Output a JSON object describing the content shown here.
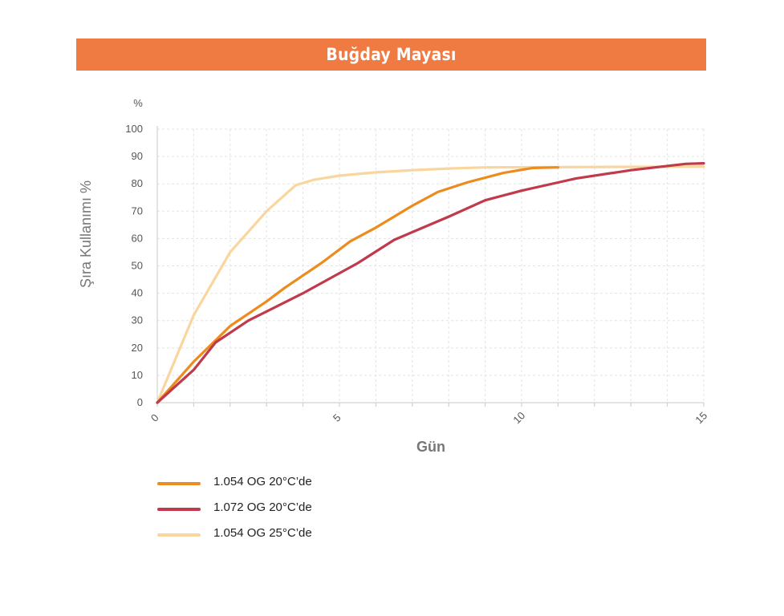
{
  "banner": {
    "title": "Buğday Mayası",
    "color": "#ef7b42"
  },
  "chart_data": {
    "type": "line",
    "title": "Buğday Mayası",
    "xlabel": "Gün",
    "ylabel": "Şıra Kullanımı %",
    "y_unit": "%",
    "xlim": [
      0,
      15
    ],
    "ylim": [
      0,
      100
    ],
    "x_ticks": [
      0,
      5,
      10,
      15
    ],
    "y_ticks": [
      0,
      10,
      20,
      30,
      40,
      50,
      60,
      70,
      80,
      90,
      100
    ],
    "grid": true,
    "legend_position": "bottom-left",
    "series": [
      {
        "name": "1.054 OG 20°C’de",
        "color": "#ec8c1f",
        "points": [
          [
            0,
            0
          ],
          [
            1,
            15
          ],
          [
            2,
            28
          ],
          [
            3,
            37
          ],
          [
            3.5,
            42
          ],
          [
            4.5,
            51
          ],
          [
            5.3,
            59
          ],
          [
            6,
            64
          ],
          [
            7,
            72
          ],
          [
            7.7,
            77
          ],
          [
            8.5,
            80.5
          ],
          [
            9.5,
            84
          ],
          [
            10.3,
            85.8
          ],
          [
            11,
            86
          ]
        ]
      },
      {
        "name": "1.072 OG 20°C’de",
        "color": "#c03a4b",
        "points": [
          [
            0,
            0
          ],
          [
            1,
            12
          ],
          [
            1.6,
            22
          ],
          [
            2.5,
            30
          ],
          [
            4,
            40
          ],
          [
            5.5,
            51
          ],
          [
            6.5,
            59.5
          ],
          [
            8,
            68
          ],
          [
            9,
            74
          ],
          [
            10,
            77.5
          ],
          [
            11,
            80.5
          ],
          [
            11.5,
            82
          ],
          [
            13,
            85
          ],
          [
            14.5,
            87.3
          ],
          [
            15,
            87.5
          ]
        ]
      },
      {
        "name": "1.054 OG 25°C’de",
        "color": "#f9d69e",
        "points": [
          [
            0,
            0
          ],
          [
            1,
            32
          ],
          [
            2,
            55
          ],
          [
            3,
            70
          ],
          [
            3.8,
            79.5
          ],
          [
            4.3,
            81.5
          ],
          [
            5,
            83
          ],
          [
            6,
            84.2
          ],
          [
            7,
            85
          ],
          [
            8,
            85.6
          ],
          [
            9,
            86
          ],
          [
            15,
            86.3
          ]
        ]
      }
    ]
  }
}
